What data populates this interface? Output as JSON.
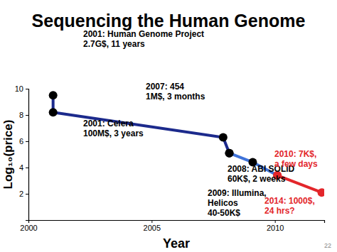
{
  "chart_data": {
    "type": "line",
    "title": "Sequencing the Human Genome",
    "x_label": "Year",
    "y_label": "Log₁₀(price)",
    "footer": "22",
    "x": [
      2001,
      2001,
      2007.9,
      2008.15,
      2009.1,
      2010.1,
      2011.9
    ],
    "series": [
      {
        "color": "#1c2a8c",
        "marker": "circle",
        "line_style": "solid",
        "colors": [
          "#000000",
          "#000000",
          "#000000",
          "#000000",
          null,
          null,
          null
        ],
        "values": [
          9.5,
          8.2,
          6.3,
          5.1,
          null,
          null,
          null
        ]
      },
      {
        "color": "#3f73d9",
        "marker": "circle",
        "line_style": "solid",
        "colors": [
          null,
          null,
          null,
          "#000000",
          "#000000",
          "#e3262b",
          null
        ],
        "values": [
          null,
          null,
          null,
          5.1,
          4.4,
          3.4,
          null
        ]
      },
      {
        "color": "#e3262b",
        "marker": "circle",
        "line_style": "solid",
        "colors": [
          null,
          null,
          null,
          null,
          null,
          "#e3262b",
          "#e3262b"
        ],
        "values": [
          null,
          null,
          null,
          null,
          null,
          3.4,
          2.1
        ]
      }
    ],
    "xlim": [
      2000,
      2012
    ],
    "xticks": [
      2000,
      2005,
      2010
    ],
    "ylim": [
      0,
      10
    ],
    "yticks": [
      2,
      4,
      6,
      8,
      10
    ],
    "grid": false,
    "annotations": [
      {
        "text": [
          "2001: Human Genome Project",
          "2.7G$, 11 years"
        ],
        "color": "#000000"
      },
      {
        "text": [
          "2001: Celera",
          "100M$, 3 years"
        ],
        "color": "#000000"
      },
      {
        "text": [
          "2007: 454",
          "1M$, 3 months"
        ],
        "color": "#000000"
      },
      {
        "text": [
          "2008: ABI SOLiD",
          "60K$, 2 weeks"
        ],
        "color": "#000000"
      },
      {
        "text": [
          "2009: Illumina,",
          "Helicos",
          "40-50K$"
        ],
        "color": "#000000"
      },
      {
        "text": [
          "2010: 7K$,",
          "a few days"
        ],
        "color": "#e3262b"
      },
      {
        "text": [
          "2014: 1000$,",
          "24 hrs?"
        ],
        "color": "#e3262b"
      }
    ]
  }
}
